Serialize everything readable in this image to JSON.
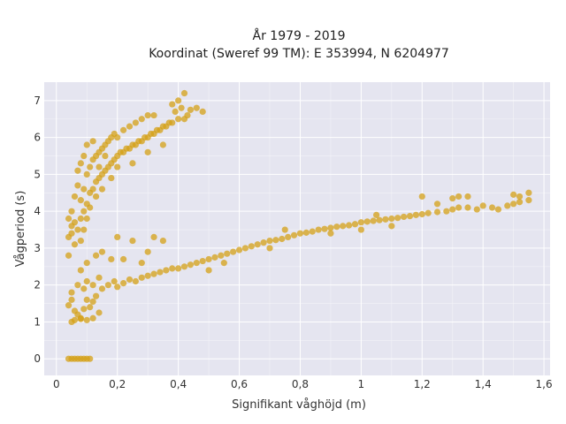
{
  "chart_data": {
    "type": "scatter",
    "title_line1": "År 1979 - 2019",
    "title_line2": "Koordinat (Sweref 99 TM): E 353994, N 6204977",
    "xlabel": "Signifikant våghöjd (m)",
    "ylabel": "Vågperiod (s)",
    "xlim": [
      -0.04,
      1.62
    ],
    "ylim": [
      -0.45,
      7.5
    ],
    "x_ticks": [
      0,
      0.2,
      0.4,
      0.6,
      0.8,
      1,
      1.2,
      1.4,
      1.6
    ],
    "x_tick_labels": [
      "0",
      "0,2",
      "0,4",
      "0,6",
      "0,8",
      "1",
      "1,2",
      "1,4",
      "1,6"
    ],
    "y_ticks": [
      0,
      1,
      2,
      3,
      4,
      5,
      6,
      7
    ],
    "y_tick_labels": [
      "0",
      "1",
      "2",
      "3",
      "4",
      "5",
      "6",
      "7"
    ],
    "grid": true,
    "background": "#e5e5f0",
    "point_color": "#d4a017",
    "series": [
      {
        "points": [
          [
            0.04,
            1.45
          ],
          [
            0.05,
            1.6
          ],
          [
            0.06,
            1.3
          ],
          [
            0.07,
            1.2
          ],
          [
            0.08,
            1.1
          ],
          [
            0.09,
            1.35
          ],
          [
            0.1,
            1.6
          ],
          [
            0.11,
            1.4
          ],
          [
            0.12,
            1.55
          ],
          [
            0.13,
            1.7
          ],
          [
            0.05,
            1.8
          ],
          [
            0.07,
            2.0
          ],
          [
            0.09,
            1.9
          ],
          [
            0.1,
            2.1
          ],
          [
            0.12,
            2.0
          ],
          [
            0.14,
            2.2
          ],
          [
            0.15,
            1.9
          ],
          [
            0.17,
            2.0
          ],
          [
            0.19,
            2.1
          ],
          [
            0.2,
            1.95
          ],
          [
            0.22,
            2.05
          ],
          [
            0.24,
            2.15
          ],
          [
            0.26,
            2.1
          ],
          [
            0.28,
            2.2
          ],
          [
            0.3,
            2.25
          ],
          [
            0.32,
            2.3
          ],
          [
            0.34,
            2.35
          ],
          [
            0.36,
            2.4
          ],
          [
            0.38,
            2.45
          ],
          [
            0.4,
            2.45
          ],
          [
            0.42,
            2.5
          ],
          [
            0.44,
            2.55
          ],
          [
            0.46,
            2.6
          ],
          [
            0.48,
            2.65
          ],
          [
            0.5,
            2.7
          ],
          [
            0.52,
            2.75
          ],
          [
            0.54,
            2.8
          ],
          [
            0.56,
            2.85
          ],
          [
            0.58,
            2.9
          ],
          [
            0.6,
            2.95
          ],
          [
            0.62,
            3.0
          ],
          [
            0.64,
            3.05
          ],
          [
            0.66,
            3.1
          ],
          [
            0.68,
            3.15
          ],
          [
            0.7,
            3.2
          ],
          [
            0.72,
            3.22
          ],
          [
            0.74,
            3.25
          ],
          [
            0.76,
            3.3
          ],
          [
            0.78,
            3.35
          ],
          [
            0.8,
            3.4
          ],
          [
            0.82,
            3.42
          ],
          [
            0.84,
            3.45
          ],
          [
            0.86,
            3.5
          ],
          [
            0.88,
            3.52
          ],
          [
            0.9,
            3.55
          ],
          [
            0.92,
            3.58
          ],
          [
            0.94,
            3.6
          ],
          [
            0.96,
            3.62
          ],
          [
            0.98,
            3.65
          ],
          [
            1.0,
            3.7
          ],
          [
            1.02,
            3.72
          ],
          [
            1.04,
            3.74
          ],
          [
            1.06,
            3.76
          ],
          [
            1.08,
            3.78
          ],
          [
            1.1,
            3.8
          ],
          [
            1.12,
            3.82
          ],
          [
            1.14,
            3.85
          ],
          [
            1.16,
            3.87
          ],
          [
            1.18,
            3.9
          ],
          [
            1.2,
            3.92
          ],
          [
            1.22,
            3.95
          ],
          [
            1.25,
            3.98
          ],
          [
            1.28,
            4.0
          ],
          [
            1.3,
            4.05
          ],
          [
            1.32,
            4.1
          ],
          [
            1.35,
            4.1
          ],
          [
            1.38,
            4.05
          ],
          [
            1.4,
            4.15
          ],
          [
            1.43,
            4.1
          ],
          [
            1.45,
            4.05
          ],
          [
            1.48,
            4.15
          ],
          [
            1.5,
            4.2
          ],
          [
            1.52,
            4.25
          ],
          [
            1.55,
            4.3
          ],
          [
            1.52,
            4.4
          ],
          [
            1.55,
            4.5
          ],
          [
            1.5,
            4.45
          ],
          [
            1.3,
            4.35
          ],
          [
            1.32,
            4.4
          ],
          [
            1.35,
            4.4
          ],
          [
            1.2,
            4.4
          ],
          [
            1.25,
            4.2
          ],
          [
            0.3,
            2.9
          ],
          [
            0.32,
            3.3
          ],
          [
            0.25,
            3.2
          ],
          [
            0.2,
            3.3
          ],
          [
            0.35,
            3.2
          ],
          [
            0.15,
            2.9
          ],
          [
            0.18,
            2.7
          ],
          [
            0.08,
            2.4
          ],
          [
            0.1,
            2.6
          ],
          [
            0.13,
            2.8
          ],
          [
            0.22,
            2.7
          ],
          [
            0.28,
            2.6
          ],
          [
            0.5,
            2.4
          ],
          [
            0.55,
            2.6
          ],
          [
            0.7,
            3.0
          ],
          [
            0.75,
            3.5
          ],
          [
            0.9,
            3.4
          ],
          [
            1.0,
            3.5
          ],
          [
            1.05,
            3.9
          ],
          [
            1.1,
            3.6
          ],
          [
            0.04,
            0.0
          ],
          [
            0.05,
            0.0
          ],
          [
            0.06,
            0.0
          ],
          [
            0.07,
            0.0
          ],
          [
            0.08,
            0.0
          ],
          [
            0.09,
            0.0
          ],
          [
            0.1,
            0.0
          ],
          [
            0.11,
            0.0
          ],
          [
            0.05,
            1.0
          ],
          [
            0.06,
            1.05
          ],
          [
            0.08,
            1.08
          ],
          [
            0.1,
            1.05
          ],
          [
            0.12,
            1.1
          ],
          [
            0.14,
            1.25
          ]
        ]
      },
      {
        "points": [
          [
            0.04,
            2.8
          ],
          [
            0.04,
            3.3
          ],
          [
            0.05,
            3.6
          ],
          [
            0.05,
            4.0
          ],
          [
            0.06,
            3.1
          ],
          [
            0.06,
            4.4
          ],
          [
            0.07,
            3.5
          ],
          [
            0.07,
            4.7
          ],
          [
            0.07,
            5.1
          ],
          [
            0.08,
            3.8
          ],
          [
            0.08,
            4.3
          ],
          [
            0.08,
            5.3
          ],
          [
            0.09,
            4.0
          ],
          [
            0.09,
            4.6
          ],
          [
            0.09,
            5.5
          ],
          [
            0.1,
            4.2
          ],
          [
            0.1,
            5.0
          ],
          [
            0.1,
            5.8
          ],
          [
            0.11,
            4.5
          ],
          [
            0.11,
            5.2
          ],
          [
            0.12,
            4.6
          ],
          [
            0.12,
            5.4
          ],
          [
            0.12,
            5.9
          ],
          [
            0.13,
            4.8
          ],
          [
            0.13,
            5.5
          ],
          [
            0.14,
            4.9
          ],
          [
            0.14,
            5.6
          ],
          [
            0.15,
            5.0
          ],
          [
            0.15,
            5.7
          ],
          [
            0.16,
            5.1
          ],
          [
            0.16,
            5.8
          ],
          [
            0.17,
            5.2
          ],
          [
            0.17,
            5.9
          ],
          [
            0.18,
            5.3
          ],
          [
            0.18,
            6.0
          ],
          [
            0.19,
            5.4
          ],
          [
            0.19,
            6.1
          ],
          [
            0.2,
            5.5
          ],
          [
            0.2,
            6.0
          ],
          [
            0.21,
            5.6
          ],
          [
            0.22,
            5.6
          ],
          [
            0.22,
            6.2
          ],
          [
            0.23,
            5.7
          ],
          [
            0.24,
            5.7
          ],
          [
            0.24,
            6.3
          ],
          [
            0.25,
            5.8
          ],
          [
            0.26,
            5.8
          ],
          [
            0.26,
            6.4
          ],
          [
            0.27,
            5.9
          ],
          [
            0.28,
            5.9
          ],
          [
            0.28,
            6.5
          ],
          [
            0.29,
            6.0
          ],
          [
            0.3,
            6.0
          ],
          [
            0.3,
            6.6
          ],
          [
            0.31,
            6.1
          ],
          [
            0.32,
            6.1
          ],
          [
            0.32,
            6.6
          ],
          [
            0.33,
            6.2
          ],
          [
            0.34,
            6.2
          ],
          [
            0.35,
            6.3
          ],
          [
            0.36,
            6.3
          ],
          [
            0.37,
            6.4
          ],
          [
            0.38,
            6.4
          ],
          [
            0.39,
            6.7
          ],
          [
            0.4,
            6.5
          ],
          [
            0.41,
            6.8
          ],
          [
            0.42,
            6.5
          ],
          [
            0.4,
            7.0
          ],
          [
            0.42,
            7.2
          ],
          [
            0.38,
            6.9
          ],
          [
            0.43,
            6.6
          ],
          [
            0.44,
            6.75
          ],
          [
            0.48,
            6.7
          ],
          [
            0.46,
            6.8
          ],
          [
            0.2,
            5.2
          ],
          [
            0.18,
            4.9
          ],
          [
            0.15,
            4.6
          ],
          [
            0.25,
            5.3
          ],
          [
            0.3,
            5.6
          ],
          [
            0.35,
            5.8
          ],
          [
            0.13,
            4.4
          ],
          [
            0.11,
            4.1
          ],
          [
            0.1,
            3.8
          ],
          [
            0.09,
            3.5
          ],
          [
            0.08,
            3.2
          ],
          [
            0.06,
            3.7
          ],
          [
            0.05,
            3.4
          ],
          [
            0.04,
            3.8
          ],
          [
            0.14,
            5.2
          ],
          [
            0.16,
            5.5
          ]
        ]
      }
    ]
  }
}
